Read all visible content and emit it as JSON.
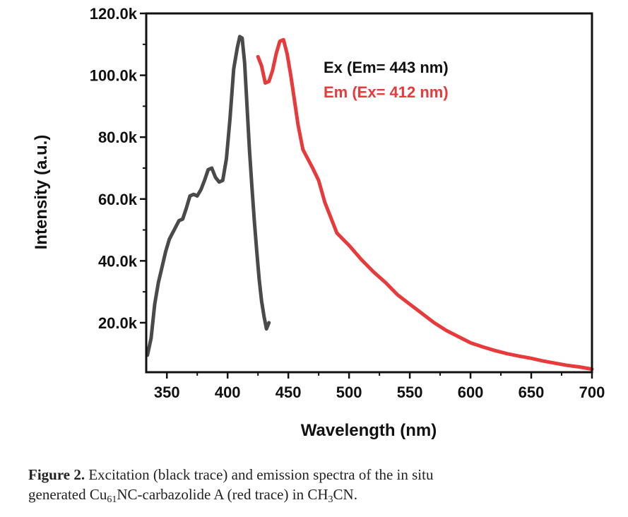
{
  "chart_data": {
    "type": "line",
    "xlabel": "Wavelength (nm)",
    "ylabel": "Intensity (a.u.)",
    "xlim": [
      333,
      700
    ],
    "ylim": [
      4000,
      120000
    ],
    "x_ticks": [
      350,
      400,
      450,
      500,
      550,
      600,
      650,
      700
    ],
    "x_tick_labels": [
      "350",
      "400",
      "450",
      "500",
      "550",
      "600",
      "650",
      "700"
    ],
    "y_ticks": [
      20000,
      40000,
      60000,
      80000,
      100000,
      120000
    ],
    "y_tick_labels": [
      "20.0k",
      "40.0k",
      "60.0k",
      "80.0k",
      "100.0k",
      "120.0k"
    ],
    "grid": false,
    "legend_position": "top-right",
    "series": [
      {
        "name": "Ex (Em= 443 nm)",
        "color": "#4a4a4a",
        "x": [
          334,
          337,
          340,
          343,
          346,
          349,
          352,
          356,
          360,
          363,
          366,
          369,
          372,
          375,
          378,
          381,
          384,
          387,
          390,
          393,
          396,
          399,
          402,
          405,
          408,
          410,
          412,
          414,
          416,
          418,
          420,
          422,
          424,
          426,
          428,
          430,
          432,
          434
        ],
        "y": [
          9500,
          15000,
          26000,
          33000,
          38000,
          43000,
          47000,
          50000,
          53000,
          53500,
          57000,
          61000,
          61500,
          61000,
          63000,
          66000,
          69500,
          70000,
          67000,
          65500,
          66000,
          73000,
          86000,
          102000,
          109000,
          112500,
          112000,
          104000,
          90000,
          76000,
          64000,
          53000,
          43000,
          34000,
          27000,
          22000,
          18000,
          20000
        ]
      },
      {
        "name": "Em (Ex= 412 nm)",
        "color": "#e8393b",
        "x": [
          425,
          428,
          431,
          434,
          437,
          440,
          443,
          446,
          449,
          452,
          455,
          458,
          462,
          466,
          470,
          475,
          480,
          485,
          490,
          495,
          500,
          510,
          520,
          530,
          540,
          550,
          560,
          570,
          580,
          590,
          600,
          610,
          620,
          630,
          640,
          650,
          660,
          670,
          680,
          690,
          700
        ],
        "y": [
          106000,
          103000,
          97500,
          98000,
          101500,
          107000,
          111000,
          111500,
          107000,
          100000,
          92000,
          84000,
          76000,
          73000,
          70000,
          66000,
          59000,
          54000,
          49000,
          47000,
          45000,
          40500,
          36500,
          33000,
          29000,
          26000,
          23000,
          20000,
          17500,
          15500,
          13500,
          12200,
          11000,
          10000,
          9200,
          8500,
          7600,
          6900,
          6200,
          5700,
          5000
        ]
      }
    ]
  },
  "caption": {
    "label": "Figure 2.",
    "line1": " Excitation (black trace) and emission spectra of the in situ",
    "line2_start": "generated Cu",
    "sub1": "61",
    "line2_mid": "NC-carbazolide A (red trace) in CH",
    "sub2": "3",
    "line2_end": "CN."
  }
}
